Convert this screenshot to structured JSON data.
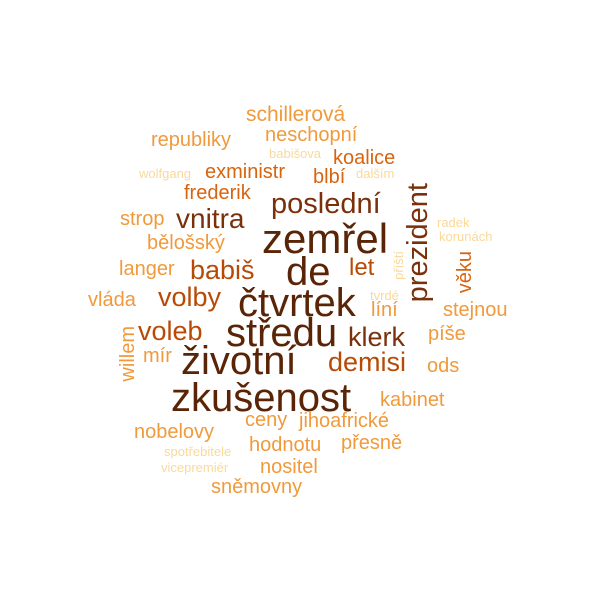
{
  "palette": {
    "darkest": "#5a2406",
    "dark": "#7a300a",
    "mid_dark": "#b84a06",
    "mid": "#d8640e",
    "light": "#f09a3c",
    "lighter": "#f6bc6c",
    "lightest": "#fad99a"
  },
  "words": [
    {
      "key": "zemrel",
      "text": "zemřel"
    },
    {
      "key": "de",
      "text": "de"
    },
    {
      "key": "ctvrtek",
      "text": "čtvrtek"
    },
    {
      "key": "stredu",
      "text": "středu"
    },
    {
      "key": "zivotni",
      "text": "životní"
    },
    {
      "key": "zkusenost",
      "text": "zkušenost"
    },
    {
      "key": "posledni",
      "text": "poslední"
    },
    {
      "key": "prezident",
      "text": "prezident"
    },
    {
      "key": "vnitra",
      "text": "vnitra"
    },
    {
      "key": "babis",
      "text": "babiš"
    },
    {
      "key": "volby",
      "text": "volby"
    },
    {
      "key": "voleb",
      "text": "voleb"
    },
    {
      "key": "klerk",
      "text": "klerk"
    },
    {
      "key": "demisi",
      "text": "demisi"
    },
    {
      "key": "let",
      "text": "let"
    },
    {
      "key": "schillerova",
      "text": "schillerová"
    },
    {
      "key": "neschopni",
      "text": "neschopní"
    },
    {
      "key": "republiky",
      "text": "republiky"
    },
    {
      "key": "koalice",
      "text": "koalice"
    },
    {
      "key": "exministr",
      "text": "exministr"
    },
    {
      "key": "blbi",
      "text": "blbí"
    },
    {
      "key": "frederik",
      "text": "frederik"
    },
    {
      "key": "strop",
      "text": "strop"
    },
    {
      "key": "belossky",
      "text": "bělošský"
    },
    {
      "key": "langer",
      "text": "langer"
    },
    {
      "key": "vlada",
      "text": "vláda"
    },
    {
      "key": "mir",
      "text": "mír"
    },
    {
      "key": "willem",
      "text": "willem"
    },
    {
      "key": "vekou",
      "text": "věku"
    },
    {
      "key": "stejnou",
      "text": "stejnou"
    },
    {
      "key": "lini",
      "text": "líní"
    },
    {
      "key": "pise",
      "text": "píše"
    },
    {
      "key": "ods",
      "text": "ods"
    },
    {
      "key": "kabinet",
      "text": "kabinet"
    },
    {
      "key": "ceny",
      "text": "ceny"
    },
    {
      "key": "jihoafricke",
      "text": "jihoafrické"
    },
    {
      "key": "nobelovy",
      "text": "nobelovy"
    },
    {
      "key": "hodnotu",
      "text": "hodnotu"
    },
    {
      "key": "presne",
      "text": "přesně"
    },
    {
      "key": "nositel",
      "text": "nositel"
    },
    {
      "key": "snemovny",
      "text": "sněmovny"
    },
    {
      "key": "babisova",
      "text": "babišova"
    },
    {
      "key": "dalsim",
      "text": "dalším"
    },
    {
      "key": "wolfgang",
      "text": "wolfgang"
    },
    {
      "key": "radek",
      "text": "radek"
    },
    {
      "key": "korunach",
      "text": "korunách"
    },
    {
      "key": "pristi",
      "text": "příští"
    },
    {
      "key": "tvrde",
      "text": "tvrdé"
    },
    {
      "key": "spotrebitele",
      "text": "spotřebitele"
    },
    {
      "key": "vicepremier",
      "text": "vicepremiér"
    }
  ]
}
